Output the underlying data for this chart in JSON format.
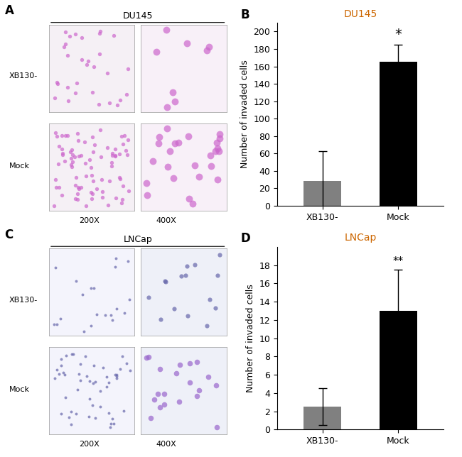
{
  "panel_B": {
    "title": "DU145",
    "title_color": "#cc6600",
    "categories": [
      "XB130-",
      "Mock"
    ],
    "values": [
      28,
      165
    ],
    "errors": [
      35,
      20
    ],
    "bar_colors": [
      "#808080",
      "#000000"
    ],
    "ylabel": "Number of invaded cells",
    "ylim": [
      0,
      210
    ],
    "yticks": [
      0,
      20,
      40,
      60,
      80,
      100,
      120,
      140,
      160,
      180,
      200
    ],
    "significance": [
      "",
      "*"
    ],
    "sig_fontsize": 14
  },
  "panel_D": {
    "title": "LNCap",
    "title_color": "#cc6600",
    "categories": [
      "XB130-",
      "Mock"
    ],
    "values": [
      2.5,
      13
    ],
    "errors": [
      2.0,
      4.5
    ],
    "bar_colors": [
      "#808080",
      "#000000"
    ],
    "ylabel": "Number of invaded cells",
    "ylim": [
      0,
      20
    ],
    "yticks": [
      0,
      2,
      4,
      6,
      8,
      10,
      12,
      14,
      16,
      18
    ],
    "significance": [
      "",
      "**"
    ],
    "sig_fontsize": 11
  },
  "panel_A_label": "A",
  "panel_B_label": "B",
  "panel_C_label": "C",
  "panel_D_label": "D",
  "panel_A_title": "DU145",
  "panel_C_title": "LNCap",
  "xb130_label": "XB130-",
  "mock_label": "Mock",
  "magnification_labels": [
    "200X",
    "400X"
  ],
  "background_color": "#ffffff",
  "tick_label_fontsize": 9,
  "axis_label_fontsize": 9,
  "panel_label_fontsize": 12,
  "bar_width": 0.5
}
